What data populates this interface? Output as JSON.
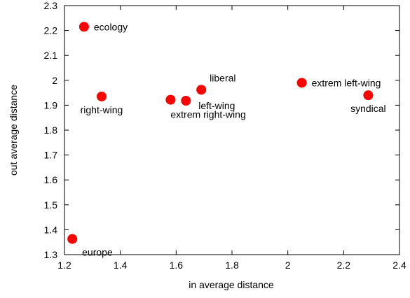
{
  "chart_data": {
    "type": "scatter",
    "title": "",
    "xlabel": "in average distance",
    "ylabel": "out average distance",
    "xlim": [
      1.2,
      2.4
    ],
    "ylim": [
      1.3,
      2.3
    ],
    "xticks": [
      1.2,
      1.4,
      1.6,
      1.8,
      2.0,
      2.2,
      2.4
    ],
    "xtick_labels": [
      "1.2",
      "1.4",
      "1.6",
      "1.8",
      "2",
      "2.2",
      "2.4"
    ],
    "yticks": [
      1.3,
      1.4,
      1.5,
      1.6,
      1.7,
      1.8,
      1.9,
      2.0,
      2.1,
      2.2,
      2.3
    ],
    "ytick_labels": [
      "1.3",
      "1.4",
      "1.5",
      "1.6",
      "1.7",
      "1.8",
      "1.9",
      "2",
      "2.1",
      "2.2",
      "2.3"
    ],
    "grid": false,
    "marker_color": "#ff0000",
    "points": [
      {
        "label": "ecology",
        "x": 1.27,
        "y": 2.215,
        "label_pos": "right"
      },
      {
        "label": "right-wing",
        "x": 1.333,
        "y": 1.935,
        "label_pos": "below"
      },
      {
        "label": "extrem right-wing",
        "x": 1.58,
        "y": 1.922,
        "label_pos": "below-right"
      },
      {
        "label": "left-wing",
        "x": 1.635,
        "y": 1.918,
        "label_pos": "right-low"
      },
      {
        "label": "liberal",
        "x": 1.69,
        "y": 1.962,
        "label_pos": "above-right"
      },
      {
        "label": "extrem left-wing",
        "x": 2.05,
        "y": 1.99,
        "label_pos": "right"
      },
      {
        "label": "syndical",
        "x": 2.288,
        "y": 1.94,
        "label_pos": "below"
      },
      {
        "label": "europe",
        "x": 1.228,
        "y": 1.363,
        "label_pos": "below-right"
      }
    ]
  }
}
